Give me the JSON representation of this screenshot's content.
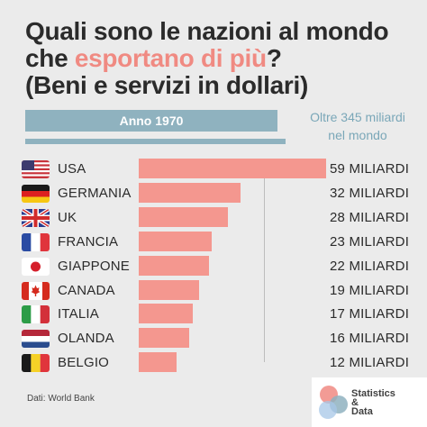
{
  "title": {
    "line1": "Quali sono le nazioni al mondo",
    "line2_prefix": "che ",
    "line2_accent": "esportano di più",
    "line2_suffix": "?",
    "line3": "(Beni e servizi in dollari)"
  },
  "year_label": "Anno 1970",
  "total_label_line1": "Oltre 345 miliardi",
  "total_label_line2": "nel mondo",
  "source": "Dati: World Bank",
  "logo": {
    "line1": "Statistics",
    "line2": "&",
    "line3": "Data"
  },
  "colors": {
    "bar": "#f4978f",
    "accent": "#f08a82",
    "banner": "#8fb2bf",
    "background": "#ebebeb"
  },
  "chart_data": {
    "type": "bar",
    "orientation": "horizontal",
    "categories": [
      "USA",
      "GERMANIA",
      "UK",
      "FRANCIA",
      "GIAPPONE",
      "CANADA",
      "ITALIA",
      "OLANDA",
      "BELGIO"
    ],
    "values": [
      59,
      32,
      28,
      23,
      22,
      19,
      17,
      16,
      12
    ],
    "value_labels": [
      "59 MILIARDI",
      "32 MILIARDI",
      "28 MILIARDI",
      "23 MILIARDI",
      "22 MILIARDI",
      "19 MILIARDI",
      "17 MILIARDI",
      "16 MILIARDI",
      "12 MILIARDI"
    ],
    "flags": [
      "usa-flag",
      "germany-flag",
      "uk-flag",
      "france-flag",
      "japan-flag",
      "canada-flag",
      "italy-flag",
      "netherlands-flag",
      "belgium-flag"
    ],
    "xlim": [
      0,
      59
    ]
  }
}
